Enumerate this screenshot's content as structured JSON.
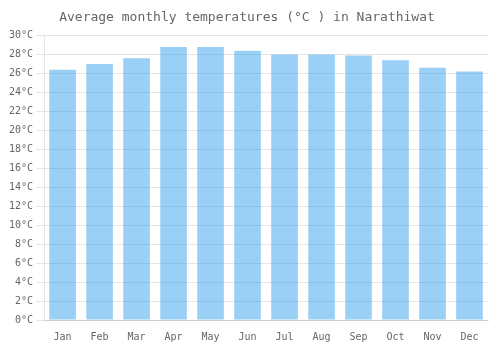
{
  "chart_data": {
    "type": "bar",
    "title": "Average monthly temperatures (°C ) in Narathiwat",
    "categories": [
      "Jan",
      "Feb",
      "Mar",
      "Apr",
      "May",
      "Jun",
      "Jul",
      "Aug",
      "Sep",
      "Oct",
      "Nov",
      "Dec"
    ],
    "values": [
      26.4,
      27.0,
      27.6,
      28.8,
      28.8,
      28.4,
      28.0,
      28.0,
      27.9,
      27.4,
      26.6,
      26.2
    ],
    "ylim": [
      0,
      30
    ],
    "yticks": [
      {
        "value": 0,
        "label": "0°C"
      },
      {
        "value": 2,
        "label": "2°C"
      },
      {
        "value": 4,
        "label": "4°C"
      },
      {
        "value": 6,
        "label": "6°C"
      },
      {
        "value": 8,
        "label": "8°C"
      },
      {
        "value": 10,
        "label": "10°C"
      },
      {
        "value": 12,
        "label": "12°C"
      },
      {
        "value": 14,
        "label": "14°C"
      },
      {
        "value": 16,
        "label": "16°C"
      },
      {
        "value": 18,
        "label": "18°C"
      },
      {
        "value": 20,
        "label": "20°C"
      },
      {
        "value": 22,
        "label": "22°C"
      },
      {
        "value": 24,
        "label": "24°C"
      },
      {
        "value": 26,
        "label": "26°C"
      },
      {
        "value": 28,
        "label": "28°C"
      },
      {
        "value": 30,
        "label": "30°C"
      }
    ],
    "grid": true
  }
}
